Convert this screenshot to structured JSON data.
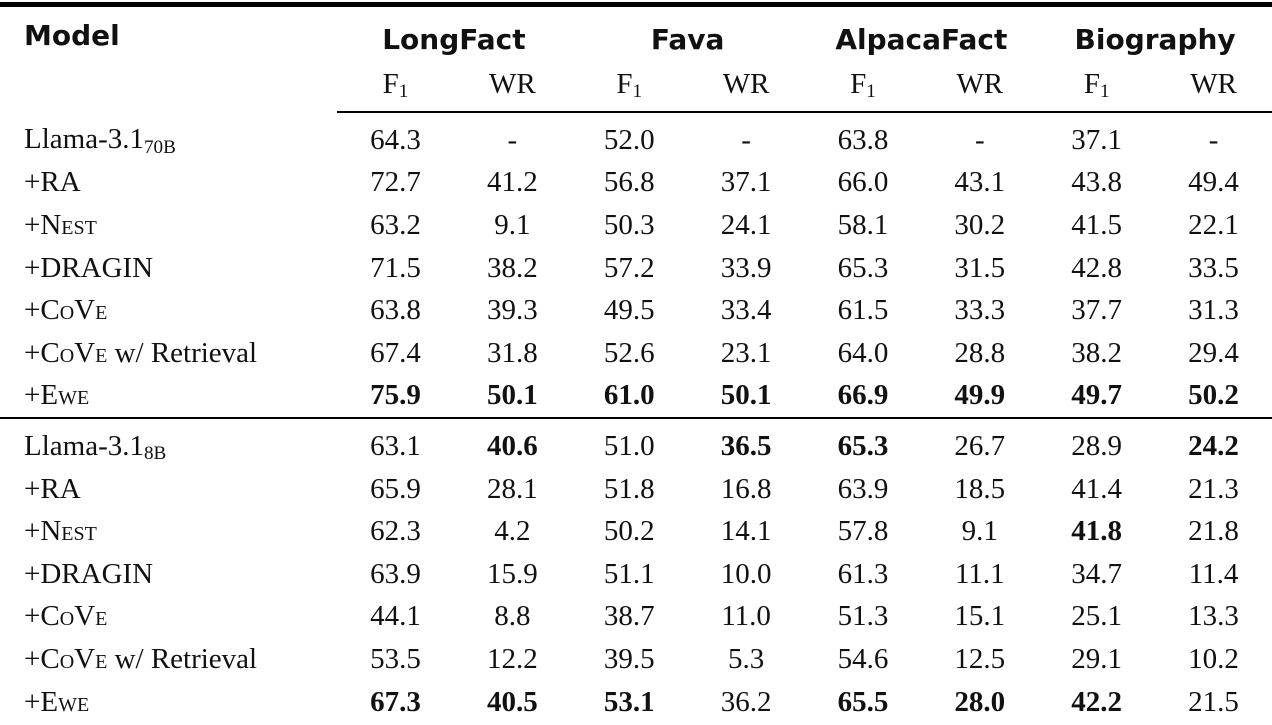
{
  "table": {
    "model_header": "Model",
    "groups": [
      {
        "label": "LongFact"
      },
      {
        "label": "Fava"
      },
      {
        "label": "AlpacaFact"
      },
      {
        "label": "Biography"
      }
    ],
    "metrics": [
      {
        "main": "F",
        "sub": "1"
      },
      {
        "main": "WR",
        "sub": ""
      }
    ],
    "sections": [
      {
        "rows": [
          {
            "label": [
              {
                "text": "Llama-3.1",
                "style": "normal"
              },
              {
                "text": "70B",
                "style": "sub"
              }
            ],
            "values": [
              "64.3",
              "-",
              "52.0",
              "-",
              "63.8",
              "-",
              "37.1",
              "-"
            ],
            "bold": [
              0,
              0,
              0,
              0,
              0,
              0,
              0,
              0
            ]
          },
          {
            "label": [
              {
                "text": "+RA",
                "style": "normal"
              }
            ],
            "values": [
              "72.7",
              "41.2",
              "56.8",
              "37.1",
              "66.0",
              "43.1",
              "43.8",
              "49.4"
            ],
            "bold": [
              0,
              0,
              0,
              0,
              0,
              0,
              0,
              0
            ]
          },
          {
            "label": [
              {
                "text": "+Nest",
                "style": "sc"
              }
            ],
            "values": [
              "63.2",
              "9.1",
              "50.3",
              "24.1",
              "58.1",
              "30.2",
              "41.5",
              "22.1"
            ],
            "bold": [
              0,
              0,
              0,
              0,
              0,
              0,
              0,
              0
            ]
          },
          {
            "label": [
              {
                "text": "+DRAGIN",
                "style": "normal"
              }
            ],
            "values": [
              "71.5",
              "38.2",
              "57.2",
              "33.9",
              "65.3",
              "31.5",
              "42.8",
              "33.5"
            ],
            "bold": [
              0,
              0,
              0,
              0,
              0,
              0,
              0,
              0
            ]
          },
          {
            "label": [
              {
                "text": "+CoVe",
                "style": "sc"
              }
            ],
            "values": [
              "63.8",
              "39.3",
              "49.5",
              "33.4",
              "61.5",
              "33.3",
              "37.7",
              "31.3"
            ],
            "bold": [
              0,
              0,
              0,
              0,
              0,
              0,
              0,
              0
            ]
          },
          {
            "label": [
              {
                "text": "+CoVe",
                "style": "sc"
              },
              {
                "text": " w/ Retrieval",
                "style": "normal"
              }
            ],
            "values": [
              "67.4",
              "31.8",
              "52.6",
              "23.1",
              "64.0",
              "28.8",
              "38.2",
              "29.4"
            ],
            "bold": [
              0,
              0,
              0,
              0,
              0,
              0,
              0,
              0
            ]
          },
          {
            "label": [
              {
                "text": "+Ewe",
                "style": "sc"
              }
            ],
            "values": [
              "75.9",
              "50.1",
              "61.0",
              "50.1",
              "66.9",
              "49.9",
              "49.7",
              "50.2"
            ],
            "bold": [
              1,
              1,
              1,
              1,
              1,
              1,
              1,
              1
            ]
          }
        ]
      },
      {
        "rows": [
          {
            "label": [
              {
                "text": "Llama-3.1",
                "style": "normal"
              },
              {
                "text": "8B",
                "style": "sub"
              }
            ],
            "values": [
              "63.1",
              "40.6",
              "51.0",
              "36.5",
              "65.3",
              "26.7",
              "28.9",
              "24.2"
            ],
            "bold": [
              0,
              1,
              0,
              1,
              1,
              0,
              0,
              1
            ]
          },
          {
            "label": [
              {
                "text": "+RA",
                "style": "normal"
              }
            ],
            "values": [
              "65.9",
              "28.1",
              "51.8",
              "16.8",
              "63.9",
              "18.5",
              "41.4",
              "21.3"
            ],
            "bold": [
              0,
              0,
              0,
              0,
              0,
              0,
              0,
              0
            ]
          },
          {
            "label": [
              {
                "text": "+Nest",
                "style": "sc"
              }
            ],
            "values": [
              "62.3",
              "4.2",
              "50.2",
              "14.1",
              "57.8",
              "9.1",
              "41.8",
              "21.8"
            ],
            "bold": [
              0,
              0,
              0,
              0,
              0,
              0,
              1,
              0
            ]
          },
          {
            "label": [
              {
                "text": "+DRAGIN",
                "style": "normal"
              }
            ],
            "values": [
              "63.9",
              "15.9",
              "51.1",
              "10.0",
              "61.3",
              "11.1",
              "34.7",
              "11.4"
            ],
            "bold": [
              0,
              0,
              0,
              0,
              0,
              0,
              0,
              0
            ]
          },
          {
            "label": [
              {
                "text": "+CoVe",
                "style": "sc"
              }
            ],
            "values": [
              "44.1",
              "8.8",
              "38.7",
              "11.0",
              "51.3",
              "15.1",
              "25.1",
              "13.3"
            ],
            "bold": [
              0,
              0,
              0,
              0,
              0,
              0,
              0,
              0
            ]
          },
          {
            "label": [
              {
                "text": "+CoVe",
                "style": "sc"
              },
              {
                "text": " w/ Retrieval",
                "style": "normal"
              }
            ],
            "values": [
              "53.5",
              "12.2",
              "39.5",
              "5.3",
              "54.6",
              "12.5",
              "29.1",
              "10.2"
            ],
            "bold": [
              0,
              0,
              0,
              0,
              0,
              0,
              0,
              0
            ]
          },
          {
            "label": [
              {
                "text": "+Ewe",
                "style": "sc"
              }
            ],
            "values": [
              "67.3",
              "40.5",
              "53.1",
              "36.2",
              "65.5",
              "28.0",
              "42.2",
              "21.5"
            ],
            "bold": [
              1,
              1,
              1,
              0,
              1,
              1,
              1,
              0
            ]
          }
        ]
      }
    ]
  },
  "colors": {
    "text": "#111111",
    "rule": "#000000",
    "background": "#ffffff"
  }
}
